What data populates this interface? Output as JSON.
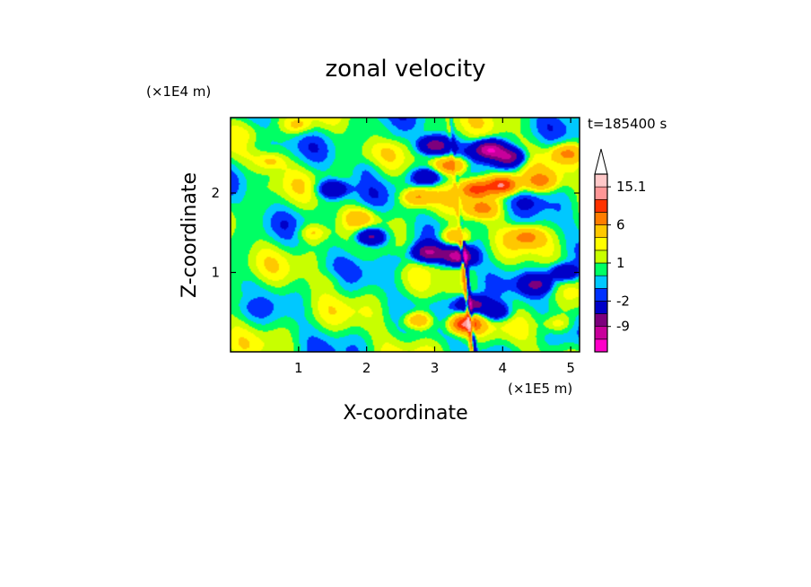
{
  "chart_data": {
    "type": "heatmap",
    "title": "zonal velocity",
    "xlabel": "X-coordinate",
    "ylabel": "Z-coordinate",
    "x_unit_label": "(×1E5 m)",
    "y_unit_label": "(×1E4 m)",
    "time_label": "t=185400 s",
    "xlim": [
      0,
      5.13
    ],
    "ylim": [
      0,
      2.95
    ],
    "x_ticks": [
      "1",
      "2",
      "3",
      "4",
      "5"
    ],
    "x_tick_values": [
      1,
      2,
      3,
      4,
      5
    ],
    "y_ticks": [
      "1",
      "2"
    ],
    "y_tick_values": [
      1,
      2
    ],
    "colorbar": {
      "levels": [
        -15,
        -12,
        -9,
        -6,
        -2,
        -1,
        0,
        1,
        2,
        3,
        6,
        9,
        12,
        15.1
      ],
      "colors": [
        "#ff00c8",
        "#c8009b",
        "#7d007d",
        "#0000c8",
        "#0032ff",
        "#00c8ff",
        "#00ff64",
        "#c8ff00",
        "#ffff00",
        "#ffc800",
        "#ff7d00",
        "#ff3200",
        "#ff9696",
        "#ffc8c8"
      ],
      "extend_arrow_color": "#ffffff",
      "labels": [
        {
          "text": "15.1",
          "value": 15.1
        },
        {
          "text": "6",
          "value": 6
        },
        {
          "text": "1",
          "value": 1
        },
        {
          "text": "-2",
          "value": -2
        },
        {
          "text": "-9",
          "value": -9
        }
      ]
    },
    "features": [
      {
        "x": 3.8,
        "z": 2.55,
        "u": -12
      },
      {
        "x": 4.1,
        "z": 2.45,
        "u": -9
      },
      {
        "x": 3.0,
        "z": 2.6,
        "u": -9
      },
      {
        "x": 2.9,
        "z": 1.25,
        "u": -9
      },
      {
        "x": 3.35,
        "z": 1.2,
        "u": -12
      },
      {
        "x": 2.05,
        "z": 1.45,
        "u": -9
      },
      {
        "x": 1.5,
        "z": 2.05,
        "u": -6
      },
      {
        "x": 2.9,
        "z": 2.2,
        "u": -6
      },
      {
        "x": 4.5,
        "z": 0.85,
        "u": -6
      },
      {
        "x": 4.9,
        "z": 1.0,
        "u": -6
      },
      {
        "x": 3.9,
        "z": 0.5,
        "u": -6
      },
      {
        "x": 3.55,
        "z": 0.6,
        "u": -9
      },
      {
        "x": 0.3,
        "z": 2.6,
        "u": -1
      },
      {
        "x": 2.3,
        "z": 2.7,
        "u": -1
      },
      {
        "x": 2.5,
        "z": 1.15,
        "u": -1
      },
      {
        "x": 3.1,
        "z": 0.9,
        "u": -1
      },
      {
        "x": 2.0,
        "z": 2.3,
        "u": -1
      },
      {
        "x": 0.6,
        "z": 0.25,
        "u": 0
      },
      {
        "x": 2.2,
        "z": 0.3,
        "u": 0
      },
      {
        "x": 4.4,
        "z": 1.9,
        "u": -1
      },
      {
        "x": 0.4,
        "z": 1.3,
        "u": 0
      },
      {
        "x": 4.0,
        "z": 2.1,
        "u": 12
      },
      {
        "x": 3.6,
        "z": 2.05,
        "u": 9
      },
      {
        "x": 3.25,
        "z": 2.35,
        "u": 9
      },
      {
        "x": 3.7,
        "z": 1.8,
        "u": 6
      },
      {
        "x": 4.35,
        "z": 1.45,
        "u": 6
      },
      {
        "x": 3.45,
        "z": 0.35,
        "u": 12
      },
      {
        "x": 2.75,
        "z": 0.4,
        "u": 6
      },
      {
        "x": 4.55,
        "z": 2.15,
        "u": 6
      },
      {
        "x": 2.75,
        "z": 1.95,
        "u": 6
      },
      {
        "x": 1.9,
        "z": 1.7,
        "u": 3
      },
      {
        "x": 0.6,
        "z": 2.4,
        "u": 3
      },
      {
        "x": 1.2,
        "z": 1.5,
        "u": 3
      },
      {
        "x": 3.3,
        "z": 1.45,
        "u": 6
      },
      {
        "x": 4.8,
        "z": 0.35,
        "u": 3
      },
      {
        "x": 1.0,
        "z": 2.85,
        "u": 3
      },
      {
        "x": 1.5,
        "z": 0.9,
        "u": 1
      },
      {
        "x": 0.3,
        "z": 0.7,
        "u": 1
      },
      {
        "x": 4.95,
        "z": 2.5,
        "u": 6
      }
    ]
  }
}
